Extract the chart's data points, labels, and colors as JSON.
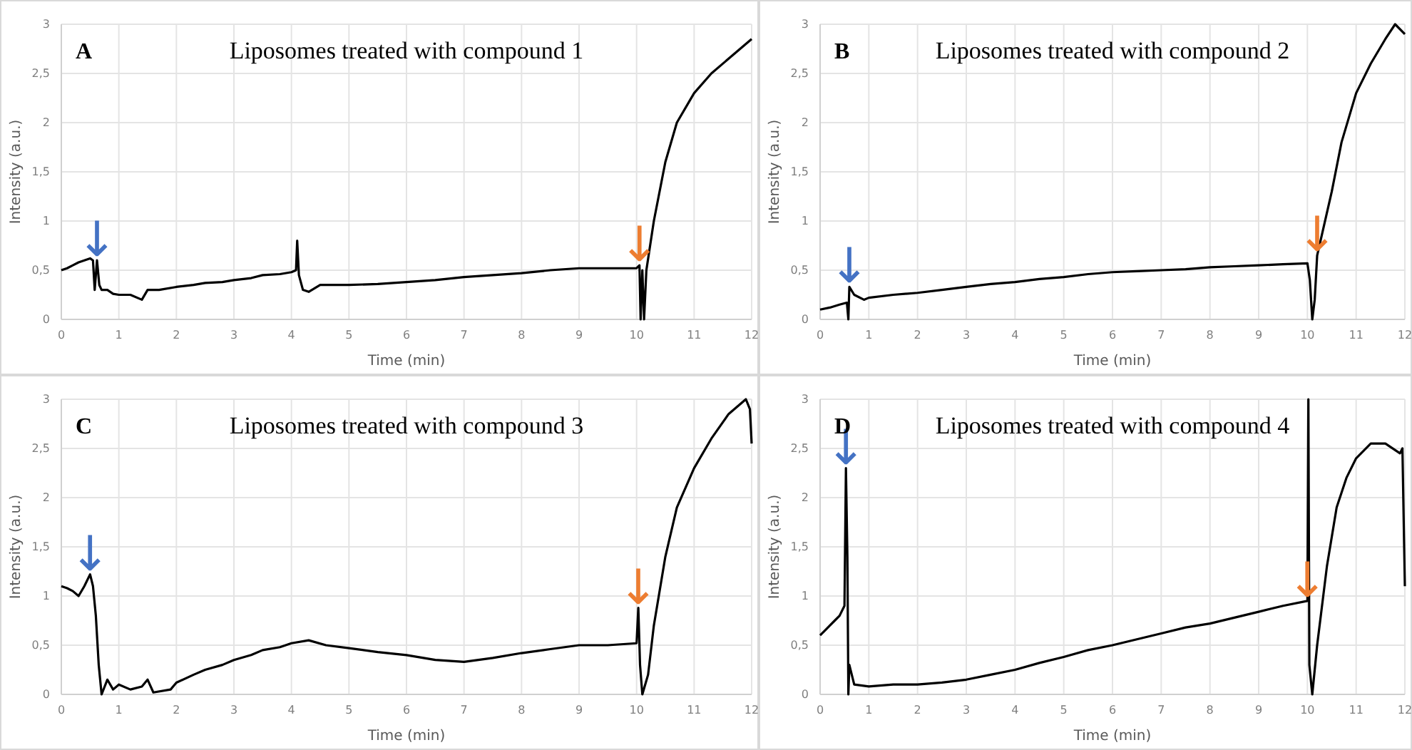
{
  "chart_data": [
    {
      "type": "line",
      "title": "Liposomes treated with compound 1",
      "xlabel": "Time (min)",
      "ylabel": "Intensity (a.u.)",
      "xlim": [
        0,
        12
      ],
      "ylim": [
        0,
        3
      ],
      "xticks": [
        0,
        1,
        2,
        3,
        4,
        5,
        6,
        7,
        8,
        9,
        10,
        11,
        12
      ],
      "yticks": [
        0,
        {
          "value": 0.5,
          "label": "0,5"
        },
        1,
        {
          "value": 1.5,
          "label": "1,5"
        },
        2,
        {
          "value": 2.5,
          "label": "2,5"
        },
        3
      ],
      "grid": true,
      "line_style": "solid",
      "marker": "none",
      "annotations": [
        "A",
        {
          "text": "↓",
          "x": 0.62,
          "y": 0.6
        },
        {
          "text": "↓",
          "x": 10.05,
          "y": 0.55
        }
      ],
      "series": [
        {
          "color": "#000000",
          "x": [
            0,
            0.1,
            0.2,
            0.3,
            0.4,
            0.5,
            0.55,
            0.58,
            0.62,
            0.66,
            0.7,
            0.8,
            0.9,
            1,
            1.2,
            1.4,
            1.5,
            1.7,
            2,
            2.3,
            2.5,
            2.8,
            3,
            3.3,
            3.5,
            3.8,
            4,
            4.08,
            4.1,
            4.13,
            4.2,
            4.3,
            4.5,
            5,
            5.5,
            6,
            6.5,
            7,
            7.5,
            8,
            8.5,
            9,
            9.5,
            10,
            10.05,
            10.07,
            10.1,
            10.13,
            10.17,
            10.3,
            10.5,
            10.7,
            11,
            11.3,
            11.6,
            11.8,
            12
          ],
          "values": [
            0.5,
            0.52,
            0.55,
            0.58,
            0.6,
            0.62,
            0.6,
            0.3,
            0.6,
            0.35,
            0.3,
            0.3,
            0.26,
            0.25,
            0.25,
            0.2,
            0.3,
            0.3,
            0.33,
            0.35,
            0.37,
            0.38,
            0.4,
            0.42,
            0.45,
            0.46,
            0.48,
            0.5,
            0.8,
            0.45,
            0.3,
            0.28,
            0.35,
            0.35,
            0.36,
            0.38,
            0.4,
            0.43,
            0.45,
            0.47,
            0.5,
            0.52,
            0.52,
            0.52,
            0.55,
            0,
            0.5,
            0,
            0.5,
            1.0,
            1.6,
            2.0,
            2.3,
            2.5,
            2.65,
            2.75,
            2.85
          ]
        }
      ]
    },
    {
      "type": "line",
      "title": "Liposomes treated with compound 2",
      "xlabel": "Time (min)",
      "ylabel": "Intensity (a.u.)",
      "xlim": [
        0,
        12
      ],
      "ylim": [
        0,
        3
      ],
      "xticks": [
        0,
        1,
        2,
        3,
        4,
        5,
        6,
        7,
        8,
        9,
        10,
        11,
        12
      ],
      "yticks": [
        0,
        {
          "value": 0.5,
          "label": "0,5"
        },
        1,
        {
          "value": 1.5,
          "label": "1,5"
        },
        2,
        {
          "value": 2.5,
          "label": "2,5"
        },
        3
      ],
      "grid": true,
      "line_style": "solid",
      "marker": "none",
      "annotations": [
        "B",
        {
          "text": "↓",
          "x": 0.6,
          "y": 0.33
        },
        {
          "text": "↓",
          "x": 10.2,
          "y": 0.65
        }
      ],
      "series": [
        {
          "color": "#000000",
          "x": [
            0,
            0.2,
            0.4,
            0.55,
            0.58,
            0.6,
            0.7,
            0.9,
            1,
            1.5,
            2,
            2.5,
            3,
            3.5,
            4,
            4.5,
            5,
            5.5,
            6,
            6.5,
            7,
            7.5,
            8,
            8.5,
            9,
            9.5,
            10,
            10.05,
            10.1,
            10.15,
            10.2,
            10.5,
            10.7,
            11,
            11.3,
            11.6,
            11.8,
            12
          ],
          "values": [
            0.1,
            0.12,
            0.15,
            0.17,
            0,
            0.33,
            0.25,
            0.2,
            0.22,
            0.25,
            0.27,
            0.3,
            0.33,
            0.36,
            0.38,
            0.41,
            0.43,
            0.46,
            0.48,
            0.49,
            0.5,
            0.51,
            0.53,
            0.54,
            0.55,
            0.56,
            0.57,
            0.4,
            0,
            0.2,
            0.65,
            1.3,
            1.8,
            2.3,
            2.6,
            2.85,
            3.0,
            2.9
          ]
        }
      ]
    },
    {
      "type": "line",
      "title": "Liposomes treated with compound 3",
      "xlabel": "Time (min)",
      "ylabel": "Intensity (a.u.)",
      "xlim": [
        0,
        12
      ],
      "ylim": [
        0,
        3
      ],
      "xticks": [
        0,
        1,
        2,
        3,
        4,
        5,
        6,
        7,
        8,
        9,
        10,
        11,
        12
      ],
      "yticks": [
        0,
        {
          "value": 0.5,
          "label": "0,5"
        },
        1,
        {
          "value": 1.5,
          "label": "1,5"
        },
        2,
        {
          "value": 2.5,
          "label": "2,5"
        },
        3
      ],
      "grid": true,
      "line_style": "solid",
      "marker": "none",
      "annotations": [
        "C",
        {
          "text": "↓",
          "x": 0.5,
          "y": 1.22
        },
        {
          "text": "↓",
          "x": 10.03,
          "y": 0.88
        }
      ],
      "series": [
        {
          "color": "#000000",
          "x": [
            0,
            0.1,
            0.2,
            0.3,
            0.4,
            0.5,
            0.55,
            0.6,
            0.65,
            0.7,
            0.8,
            0.9,
            1,
            1.2,
            1.4,
            1.5,
            1.6,
            1.9,
            2,
            2.3,
            2.5,
            2.8,
            3,
            3.3,
            3.5,
            3.8,
            4,
            4.3,
            4.6,
            5,
            5.5,
            6,
            6.5,
            7,
            7.5,
            8,
            8.5,
            9,
            9.5,
            10,
            10.03,
            10.06,
            10.1,
            10.2,
            10.3,
            10.5,
            10.7,
            11,
            11.3,
            11.6,
            11.9,
            11.97,
            12
          ],
          "values": [
            1.1,
            1.08,
            1.05,
            1.0,
            1.1,
            1.22,
            1.1,
            0.8,
            0.3,
            0.0,
            0.15,
            0.05,
            0.1,
            0.05,
            0.08,
            0.15,
            0.02,
            0.05,
            0.12,
            0.2,
            0.25,
            0.3,
            0.35,
            0.4,
            0.45,
            0.48,
            0.52,
            0.55,
            0.5,
            0.47,
            0.43,
            0.4,
            0.35,
            0.33,
            0.37,
            0.42,
            0.46,
            0.5,
            0.5,
            0.52,
            0.88,
            0.3,
            0,
            0.2,
            0.7,
            1.4,
            1.9,
            2.3,
            2.6,
            2.85,
            3.0,
            2.9,
            2.55
          ]
        }
      ]
    },
    {
      "type": "line",
      "title": "Liposomes treated with compound 4",
      "xlabel": "Time (min)",
      "ylabel": "Intensity (a.u.)",
      "xlim": [
        0,
        12
      ],
      "ylim": [
        0,
        3
      ],
      "xticks": [
        0,
        1,
        2,
        3,
        4,
        5,
        6,
        7,
        8,
        9,
        10,
        11,
        12
      ],
      "yticks": [
        0,
        {
          "value": 0.5,
          "label": "0,5"
        },
        1,
        {
          "value": 1.5,
          "label": "1,5"
        },
        2,
        {
          "value": 2.5,
          "label": "2,5"
        },
        3
      ],
      "grid": true,
      "line_style": "solid",
      "marker": "none",
      "annotations": [
        "D",
        {
          "text": "↓",
          "x": 0.53,
          "y": 2.3
        },
        {
          "text": "↓",
          "x": 10,
          "y": 0.95
        }
      ],
      "series": [
        {
          "color": "#000000",
          "x": [
            0,
            0.1,
            0.2,
            0.3,
            0.4,
            0.5,
            0.53,
            0.56,
            0.58,
            0.6,
            0.7,
            1,
            1.5,
            2,
            2.5,
            3,
            3.5,
            4,
            4.5,
            5,
            5.5,
            6,
            6.5,
            7,
            7.5,
            8,
            8.5,
            9,
            9.5,
            10,
            10.02,
            10.04,
            10.1,
            10.2,
            10.4,
            10.6,
            10.8,
            11,
            11.3,
            11.6,
            11.9,
            11.95,
            12
          ],
          "values": [
            0.6,
            0.65,
            0.7,
            0.75,
            0.8,
            0.9,
            2.3,
            1.4,
            0,
            0.3,
            0.1,
            0.08,
            0.1,
            0.1,
            0.12,
            0.15,
            0.2,
            0.25,
            0.32,
            0.38,
            0.45,
            0.5,
            0.56,
            0.62,
            0.68,
            0.72,
            0.78,
            0.84,
            0.9,
            0.95,
            3.0,
            0.3,
            0,
            0.5,
            1.3,
            1.9,
            2.2,
            2.4,
            2.55,
            2.55,
            2.45,
            2.5,
            1.1
          ]
        }
      ]
    }
  ]
}
